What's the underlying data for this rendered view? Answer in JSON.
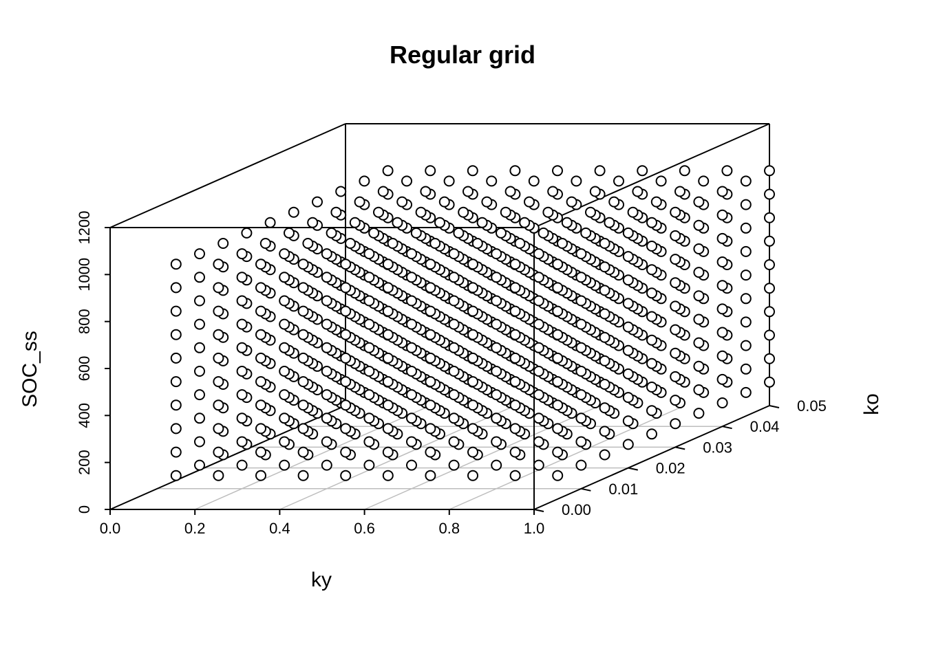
{
  "chart_data": {
    "type": "scatter",
    "projection": "3d",
    "title": "Regular grid",
    "xlabel": "ky",
    "ylabel": "ko",
    "zlabel": "SOC_ss",
    "xlim": [
      0,
      1
    ],
    "ylim": [
      0,
      0.05
    ],
    "zlim": [
      0,
      1200
    ],
    "x_ticks": [
      "0.0",
      "0.2",
      "0.4",
      "0.6",
      "0.8",
      "1.0"
    ],
    "y_ticks": [
      "0.00",
      "0.01",
      "0.02",
      "0.03",
      "0.04",
      "0.05"
    ],
    "z_ticks": [
      "0",
      "200",
      "400",
      "600",
      "800",
      "1000",
      "1200"
    ],
    "grid": true,
    "point_style": "open-circle",
    "x": [
      0.1,
      0.2,
      0.3,
      0.4,
      0.5,
      0.6,
      0.7,
      0.8,
      0.9,
      1.0
    ],
    "y": [
      0.005,
      0.01,
      0.015,
      0.02,
      0.025,
      0.03,
      0.035,
      0.04,
      0.045,
      0.05
    ],
    "z_levels": [
      100,
      200,
      300,
      400,
      500,
      600,
      700,
      800,
      900,
      1000
    ]
  }
}
